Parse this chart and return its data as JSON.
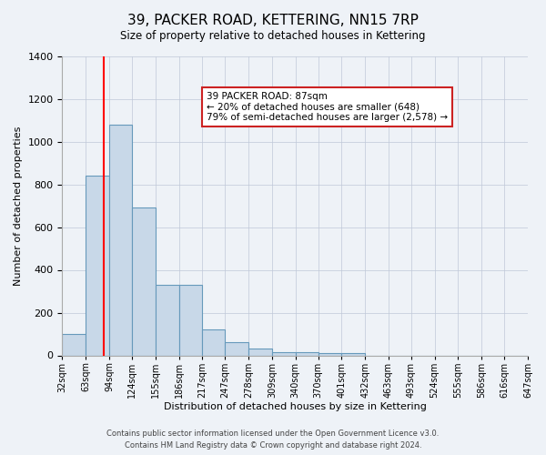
{
  "title": "39, PACKER ROAD, KETTERING, NN15 7RP",
  "subtitle": "Size of property relative to detached houses in Kettering",
  "xlabel": "Distribution of detached houses by size in Kettering",
  "ylabel": "Number of detached properties",
  "bin_labels": [
    "32sqm",
    "63sqm",
    "94sqm",
    "124sqm",
    "155sqm",
    "186sqm",
    "217sqm",
    "247sqm",
    "278sqm",
    "309sqm",
    "340sqm",
    "370sqm",
    "401sqm",
    "432sqm",
    "463sqm",
    "493sqm",
    "524sqm",
    "555sqm",
    "586sqm",
    "616sqm",
    "647sqm"
  ],
  "bin_edges": [
    32,
    63,
    94,
    124,
    155,
    186,
    217,
    247,
    278,
    309,
    340,
    370,
    401,
    432,
    463,
    493,
    524,
    555,
    586,
    616,
    647
  ],
  "bar_heights": [
    100,
    840,
    1080,
    690,
    330,
    330,
    120,
    60,
    30,
    15,
    15,
    10,
    10,
    0,
    0,
    0,
    0,
    0,
    0,
    0
  ],
  "bar_color": "#c8d8e8",
  "bar_edge_color": "#6699bb",
  "red_line_x": 87,
  "ylim": [
    0,
    1400
  ],
  "yticks": [
    0,
    200,
    400,
    600,
    800,
    1000,
    1200,
    1400
  ],
  "annotation_line1": "39 PACKER ROAD: 87sqm",
  "annotation_line2": "← 20% of detached houses are smaller (648)",
  "annotation_line3": "79% of semi-detached houses are larger (2,578) →",
  "footer_line1": "Contains HM Land Registry data © Crown copyright and database right 2024.",
  "footer_line2": "Contains public sector information licensed under the Open Government Licence v3.0.",
  "background_color": "#eef2f7",
  "grid_color": "#c0c8d8"
}
